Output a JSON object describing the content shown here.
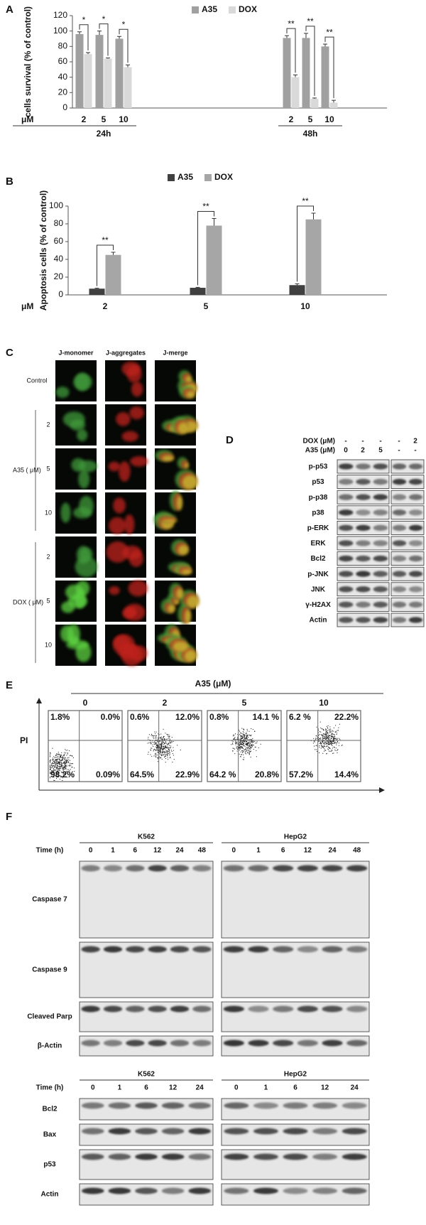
{
  "chart_data": [
    {
      "type": "bar",
      "panel": "A",
      "y_label": "cells survival (% of control)",
      "x_label": "μM",
      "categories": [
        "2",
        "5",
        "10",
        "2",
        "5",
        "10"
      ],
      "groups": [
        "24h",
        "48h"
      ],
      "series": [
        {
          "name": "A35",
          "color": "#a0a0a0",
          "values": [
            96,
            95,
            90,
            91,
            91,
            80
          ],
          "errors": [
            3,
            5,
            3,
            3,
            6,
            3
          ]
        },
        {
          "name": "DOX",
          "color": "#d9d9d9",
          "values": [
            70,
            64,
            53,
            40,
            12,
            7
          ],
          "errors": [
            2,
            1,
            3,
            3,
            1,
            3
          ]
        }
      ],
      "significance": [
        "*",
        "*",
        "*",
        "**",
        "**",
        "**"
      ],
      "ylim": [
        0,
        120
      ],
      "yticks": [
        0,
        20,
        40,
        60,
        80,
        100,
        120
      ],
      "grid": false
    },
    {
      "type": "bar",
      "panel": "B",
      "y_label": "Apoptosis cells (% of control)",
      "x_label": "μM",
      "categories": [
        "2",
        "5",
        "10"
      ],
      "series": [
        {
          "name": "A35",
          "color": "#404040",
          "values": [
            7,
            8,
            11
          ],
          "errors": [
            0.5,
            0.5,
            1.5
          ]
        },
        {
          "name": "DOX",
          "color": "#a6a6a6",
          "values": [
            45,
            78,
            85
          ],
          "errors": [
            3,
            8,
            7
          ]
        }
      ],
      "significance": [
        "**",
        "**",
        "**"
      ],
      "ylim": [
        0,
        100
      ],
      "yticks": [
        0,
        20,
        40,
        60,
        80,
        100
      ],
      "grid": false
    }
  ],
  "panel_c": {
    "label": "C",
    "columns": [
      "J-monomer",
      "J-aggregates",
      "J-merge"
    ],
    "control": "Control",
    "groups": [
      {
        "label": "A35 ( μM)",
        "rows": [
          "2",
          "5",
          "10"
        ]
      },
      {
        "label": "DOX ( μM)",
        "rows": [
          "2",
          "5",
          "10"
        ]
      }
    ]
  },
  "panel_d": {
    "label": "D",
    "treatments": [
      {
        "label": "DOX (μM)",
        "lanes": [
          "-",
          "-",
          "-",
          "-",
          "2"
        ]
      },
      {
        "label": "A35 (μM)",
        "lanes": [
          "0",
          "2",
          "5",
          "-",
          "-"
        ]
      }
    ],
    "rows": [
      "p-p53",
      "p53",
      "p-p38",
      "p38",
      "p-ERK",
      "ERK",
      "Bcl2",
      "p-JNK",
      "JNK",
      "γ-H2AX",
      "Actin"
    ]
  },
  "panel_e": {
    "label": "E",
    "title": "A35 (μM)",
    "y_axis": "PI",
    "plots": [
      {
        "label": "0",
        "quadrants": [
          "1.8%",
          "0.0%",
          "98.2%",
          "0.09%"
        ]
      },
      {
        "label": "2",
        "quadrants": [
          "0.6%",
          "12.0%",
          "64.5%",
          "22.9%"
        ]
      },
      {
        "label": "5",
        "quadrants": [
          "0.8%",
          "14.1 %",
          "64.2 %",
          "20.8%"
        ]
      },
      {
        "label": "10",
        "quadrants": [
          "6.2 %",
          "22.2%",
          "57.2%",
          "14.4%"
        ]
      }
    ]
  },
  "panel_f": {
    "label": "F",
    "blots": [
      {
        "time_label": "Time (h)",
        "cell_lines": [
          {
            "name": "K562",
            "times": [
              "0",
              "1",
              "6",
              "12",
              "24",
              "48"
            ]
          },
          {
            "name": "HepG2",
            "times": [
              "0",
              "1",
              "6",
              "12",
              "24",
              "48"
            ]
          }
        ],
        "rows": [
          "Caspase 7",
          "Caspase 9",
          "Cleaved Parp",
          "β-Actin"
        ]
      },
      {
        "time_label": "Time (h)",
        "cell_lines": [
          {
            "name": "K562",
            "times": [
              "0",
              "1",
              "6",
              "12",
              "24"
            ]
          },
          {
            "name": "HepG2",
            "times": [
              "0",
              "1",
              "6",
              "12",
              "24"
            ]
          }
        ],
        "rows": [
          "Bcl2",
          "Bax",
          "p53",
          "Actin"
        ]
      }
    ]
  }
}
